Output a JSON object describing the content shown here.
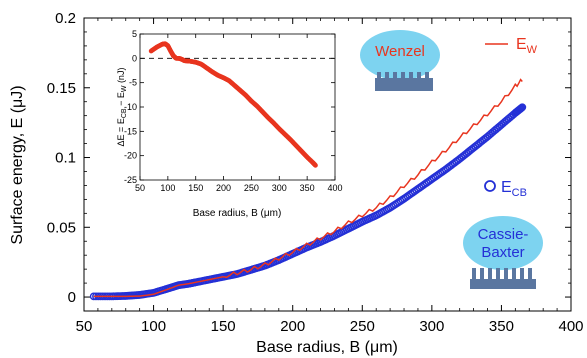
{
  "chart_data": {
    "type": "scatter",
    "xlabel": "Base radius, B (μm)",
    "ylabel": "Surface energy, E (μJ)",
    "xlim": [
      50,
      400
    ],
    "ylim": [
      -0.01,
      0.2
    ],
    "x_ticks": [
      "50",
      "100",
      "150",
      "200",
      "250",
      "300",
      "350",
      "400"
    ],
    "y_ticks": [
      "0",
      "0.05",
      "0.1",
      "0.15",
      "0.2"
    ],
    "legend": {
      "wenzel_label": "E",
      "wenzel_sub": "W",
      "cb_label": "E",
      "cb_sub": "CB"
    },
    "annotations": {
      "wenzel": "Wenzel",
      "cassie_line1": "Cassie-",
      "cassie_line2": "Baxter"
    },
    "series": [
      {
        "name": "E_W",
        "style": "line",
        "color": "#e8351f",
        "x": [
          57,
          70,
          80,
          90,
          100,
          110,
          118,
          125,
          130,
          140,
          150,
          160,
          170,
          180,
          190,
          200,
          210,
          220,
          230,
          240,
          250,
          260,
          270,
          280,
          290,
          300,
          310,
          320,
          330,
          340,
          350,
          360,
          365
        ],
        "y": [
          0.0005,
          0.0005,
          0.0005,
          0.0007,
          0.002,
          0.0055,
          0.0085,
          0.0095,
          0.0105,
          0.0125,
          0.0145,
          0.017,
          0.0195,
          0.023,
          0.0275,
          0.032,
          0.037,
          0.042,
          0.047,
          0.053,
          0.0585,
          0.064,
          0.071,
          0.0795,
          0.0875,
          0.0965,
          0.105,
          0.114,
          0.1225,
          0.131,
          0.14,
          0.151,
          0.1555
        ]
      },
      {
        "name": "E_CB",
        "style": "markers",
        "color": "#2430d6",
        "x": [
          57,
          70,
          80,
          90,
          100,
          110,
          118,
          125,
          130,
          140,
          150,
          160,
          170,
          180,
          190,
          200,
          210,
          220,
          230,
          240,
          250,
          260,
          270,
          280,
          290,
          300,
          310,
          320,
          330,
          340,
          350,
          360,
          365
        ],
        "y": [
          0.0005,
          0.0005,
          0.0008,
          0.0015,
          0.003,
          0.006,
          0.0085,
          0.0095,
          0.0105,
          0.0125,
          0.0145,
          0.0165,
          0.0195,
          0.0225,
          0.0265,
          0.031,
          0.0355,
          0.0395,
          0.044,
          0.049,
          0.054,
          0.0585,
          0.064,
          0.0705,
          0.0775,
          0.0845,
          0.0915,
          0.099,
          0.107,
          0.115,
          0.1235,
          0.132,
          0.136
        ]
      }
    ],
    "inset": {
      "type": "scatter",
      "xlabel": "Base radius, B (μm)",
      "ylabel_main": "ΔE = E",
      "ylabel_sub1": "CB",
      "ylabel_mid": " − E",
      "ylabel_sub2": "W",
      "ylabel_end": " (nJ)",
      "xlim": [
        50,
        400
      ],
      "ylim": [
        -25,
        5
      ],
      "x_ticks": [
        "50",
        "100",
        "150",
        "200",
        "250",
        "300",
        "350",
        "400"
      ],
      "y_ticks": [
        "5",
        "0",
        "-5",
        "-10",
        "-15",
        "-20",
        "-25"
      ],
      "zero_line": "dashed",
      "series": [
        {
          "name": "ΔE",
          "color": "#e8351f",
          "x": [
            70,
            80,
            90,
            95,
            100,
            105,
            110,
            115,
            120,
            125,
            130,
            140,
            150,
            160,
            170,
            180,
            190,
            200,
            210,
            220,
            230,
            240,
            250,
            260,
            270,
            280,
            290,
            300,
            310,
            320,
            330,
            340,
            350,
            360,
            365
          ],
          "y": [
            1.5,
            2.3,
            2.9,
            3.0,
            2.6,
            1.5,
            0.5,
            0.0,
            0.0,
            -0.2,
            -0.5,
            -0.6,
            -0.8,
            -1.2,
            -2.0,
            -2.8,
            -3.5,
            -4.0,
            -4.6,
            -5.6,
            -6.6,
            -7.6,
            -8.8,
            -9.8,
            -11.0,
            -12.2,
            -13.3,
            -14.5,
            -15.6,
            -16.7,
            -17.9,
            -19.1,
            -20.3,
            -21.4,
            -22.0
          ]
        }
      ]
    }
  }
}
